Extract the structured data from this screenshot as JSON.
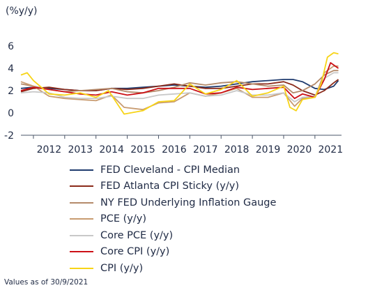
{
  "unit_label": "(%y/y)",
  "footnote": "Values as of 30/9/2021",
  "chart_data": {
    "type": "line",
    "x_range": [
      2011.6,
      2021.85
    ],
    "ylim": [
      -2,
      6
    ],
    "y_ticks": [
      -2,
      0,
      2,
      4,
      6
    ],
    "x_ticks": [
      {
        "label": "2012",
        "x": 2012.0
      },
      {
        "label": "2013",
        "x": 2013.0
      },
      {
        "label": "2014",
        "x": 2014.0
      },
      {
        "label": "2015",
        "x": 2015.0
      },
      {
        "label": "2016",
        "x": 2016.0
      },
      {
        "label": "2017",
        "x": 2017.0
      },
      {
        "label": "2018",
        "x": 2018.0
      },
      {
        "label": "2019",
        "x": 2019.0
      },
      {
        "label": "2020",
        "x": 2020.0
      },
      {
        "label": "2021",
        "x": 2021.0
      }
    ],
    "grid": false,
    "legend_position": "bottom",
    "series": [
      {
        "name": "FED Cleveland - CPI Median",
        "color": "#1f3b6e",
        "x": [
          2011.6,
          2012.0,
          2012.5,
          2013.0,
          2013.5,
          2014.0,
          2014.5,
          2015.0,
          2015.5,
          2016.0,
          2016.5,
          2017.0,
          2017.5,
          2018.0,
          2018.5,
          2019.0,
          2019.5,
          2020.0,
          2020.3,
          2020.6,
          2021.0,
          2021.3,
          2021.6,
          2021.75
        ],
        "y": [
          2.2,
          2.3,
          2.2,
          2.1,
          2.0,
          2.0,
          2.2,
          2.2,
          2.3,
          2.4,
          2.5,
          2.4,
          2.3,
          2.4,
          2.6,
          2.8,
          2.9,
          3.0,
          3.0,
          2.8,
          2.2,
          2.1,
          2.4,
          2.9
        ]
      },
      {
        "name": "FED Atlanta CPI Sticky (y/y)",
        "color": "#8b2a1a",
        "x": [
          2011.6,
          2012.0,
          2012.5,
          2013.0,
          2013.5,
          2014.0,
          2014.5,
          2015.0,
          2015.5,
          2016.0,
          2016.5,
          2017.0,
          2017.5,
          2018.0,
          2018.5,
          2019.0,
          2019.5,
          2020.0,
          2020.3,
          2020.6,
          2021.0,
          2021.3,
          2021.6,
          2021.75
        ],
        "y": [
          1.9,
          2.2,
          2.3,
          2.1,
          2.0,
          2.0,
          2.2,
          2.1,
          2.2,
          2.4,
          2.6,
          2.4,
          2.2,
          2.2,
          2.4,
          2.6,
          2.6,
          2.8,
          2.5,
          2.0,
          1.6,
          2.0,
          2.7,
          3.0
        ]
      },
      {
        "name": "NY FED Underlying Inflation Gauge",
        "color": "#b48a6a",
        "x": [
          2011.6,
          2012.0,
          2012.5,
          2013.0,
          2013.5,
          2014.0,
          2014.5,
          2015.0,
          2015.5,
          2016.0,
          2016.5,
          2017.0,
          2017.5,
          2018.0,
          2018.5,
          2019.0,
          2019.5,
          2020.0,
          2020.3,
          2020.6,
          2021.0,
          2021.3,
          2021.6,
          2021.75
        ],
        "y": [
          2.6,
          2.4,
          2.1,
          1.9,
          2.0,
          2.1,
          2.2,
          1.9,
          1.8,
          2.0,
          2.3,
          2.7,
          2.5,
          2.7,
          2.8,
          2.6,
          2.4,
          2.5,
          1.8,
          2.0,
          2.6,
          3.4,
          3.8,
          3.8
        ]
      },
      {
        "name": "PCE (y/y)",
        "color": "#c89b70",
        "x": [
          2011.6,
          2012.0,
          2012.5,
          2013.0,
          2013.5,
          2014.0,
          2014.5,
          2014.9,
          2015.5,
          2016.0,
          2016.5,
          2017.0,
          2017.5,
          2018.0,
          2018.5,
          2019.0,
          2019.5,
          2020.0,
          2020.35,
          2020.6,
          2021.0,
          2021.3,
          2021.6,
          2021.75
        ],
        "y": [
          2.8,
          2.4,
          1.5,
          1.3,
          1.2,
          1.1,
          1.6,
          0.5,
          0.3,
          0.9,
          1.0,
          1.8,
          1.5,
          1.8,
          2.2,
          1.4,
          1.4,
          1.8,
          0.6,
          1.3,
          1.4,
          3.6,
          4.2,
          4.2
        ]
      },
      {
        "name": "Core PCE (y/y)",
        "color": "#c8c8c8",
        "x": [
          2011.6,
          2012.0,
          2012.5,
          2013.0,
          2013.5,
          2014.0,
          2014.5,
          2015.0,
          2015.5,
          2016.0,
          2016.5,
          2017.0,
          2017.5,
          2018.0,
          2018.5,
          2019.0,
          2019.5,
          2020.0,
          2020.35,
          2020.6,
          2021.0,
          2021.3,
          2021.6,
          2021.75
        ],
        "y": [
          1.8,
          1.9,
          1.8,
          1.4,
          1.3,
          1.3,
          1.5,
          1.3,
          1.3,
          1.6,
          1.7,
          1.8,
          1.5,
          1.6,
          2.0,
          1.6,
          1.6,
          1.8,
          1.0,
          1.4,
          1.5,
          3.1,
          3.6,
          3.6
        ]
      },
      {
        "name": "Core CPI (y/y)",
        "color": "#cc1016",
        "x": [
          2011.6,
          2012.0,
          2012.5,
          2013.0,
          2013.5,
          2014.0,
          2014.5,
          2015.0,
          2015.5,
          2016.0,
          2016.5,
          2017.0,
          2017.5,
          2018.0,
          2018.5,
          2019.0,
          2019.5,
          2020.0,
          2020.35,
          2020.6,
          2021.0,
          2021.3,
          2021.5,
          2021.75
        ],
        "y": [
          2.0,
          2.3,
          2.1,
          1.9,
          1.7,
          1.6,
          1.9,
          1.6,
          1.8,
          2.2,
          2.2,
          2.2,
          1.7,
          1.8,
          2.3,
          2.1,
          2.2,
          2.3,
          1.3,
          1.7,
          1.4,
          3.0,
          4.5,
          4.0
        ]
      },
      {
        "name": "CPI (y/y)",
        "color": "#f7d417",
        "x": [
          2011.6,
          2011.8,
          2012.0,
          2012.5,
          2013.0,
          2013.5,
          2014.0,
          2014.4,
          2014.9,
          2015.5,
          2016.0,
          2016.5,
          2017.0,
          2017.5,
          2018.0,
          2018.5,
          2019.0,
          2019.5,
          2020.0,
          2020.2,
          2020.4,
          2020.6,
          2021.0,
          2021.2,
          2021.4,
          2021.6,
          2021.75
        ],
        "y": [
          3.4,
          3.6,
          2.9,
          1.7,
          1.6,
          1.8,
          1.4,
          2.0,
          -0.1,
          0.2,
          1.0,
          1.1,
          2.6,
          1.7,
          2.1,
          2.9,
          1.5,
          1.8,
          2.4,
          0.5,
          0.2,
          1.2,
          1.4,
          2.6,
          5.0,
          5.4,
          5.3
        ]
      }
    ]
  }
}
